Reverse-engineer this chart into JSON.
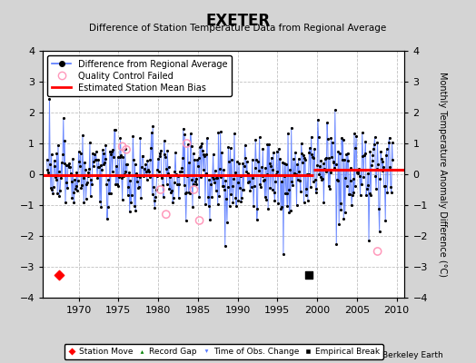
{
  "title": "EXETER",
  "subtitle": "Difference of Station Temperature Data from Regional Average",
  "ylabel_right": "Monthly Temperature Anomaly Difference (°C)",
  "xlim": [
    1965.5,
    2011.0
  ],
  "ylim": [
    -4,
    4
  ],
  "yticks": [
    -4,
    -3,
    -2,
    -1,
    0,
    1,
    2,
    3,
    4
  ],
  "xticks": [
    1970,
    1975,
    1980,
    1985,
    1990,
    1995,
    2000,
    2005,
    2010
  ],
  "background_color": "#d4d4d4",
  "plot_bg_color": "#ffffff",
  "grid_color": "#c0c0c0",
  "line_color": "#5577ff",
  "dot_color": "#000000",
  "bias_color": "#ff0000",
  "bias_level_1": -0.03,
  "bias_level_2": 0.15,
  "bias_break_year": 1999.5,
  "station_move_x": [
    1967.5
  ],
  "station_move_y": [
    -3.25
  ],
  "empirical_break_x": [
    1999.0
  ],
  "empirical_break_y": [
    -3.25
  ],
  "qc_fail_approx": [
    [
      1975.5,
      0.9
    ],
    [
      1976.0,
      0.8
    ],
    [
      1980.3,
      -0.5
    ],
    [
      1981.0,
      -1.3
    ],
    [
      1983.6,
      1.0
    ],
    [
      1984.5,
      -0.5
    ],
    [
      1985.2,
      -1.5
    ],
    [
      2007.6,
      -2.5
    ]
  ],
  "seed": 42
}
